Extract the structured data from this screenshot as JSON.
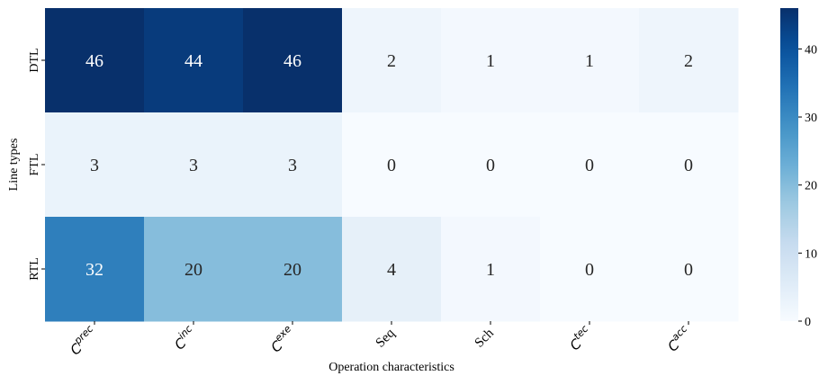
{
  "chart_data": {
    "type": "heatmap",
    "title": "",
    "xlabel": "Operation characteristics",
    "ylabel": "Line types",
    "x_labels": [
      {
        "base": "C",
        "sup": "prec"
      },
      {
        "base": "C",
        "sup": "inc"
      },
      {
        "base": "C",
        "sup": "exe"
      },
      {
        "base": "Seq",
        "sup": ""
      },
      {
        "base": "Sch",
        "sup": ""
      },
      {
        "base": "C",
        "sup": "tec"
      },
      {
        "base": "C",
        "sup": "acc"
      }
    ],
    "y_labels": [
      "DTL",
      "FTL",
      "RTL"
    ],
    "values": [
      [
        46,
        44,
        46,
        2,
        1,
        1,
        2
      ],
      [
        3,
        3,
        3,
        0,
        0,
        0,
        0
      ],
      [
        32,
        20,
        20,
        4,
        1,
        0,
        0
      ]
    ],
    "colorbar": {
      "min": 0,
      "max": 46,
      "ticks": [
        0,
        10,
        20,
        30,
        40
      ],
      "colormap": "Blues"
    },
    "annotations": true,
    "grid": false
  }
}
